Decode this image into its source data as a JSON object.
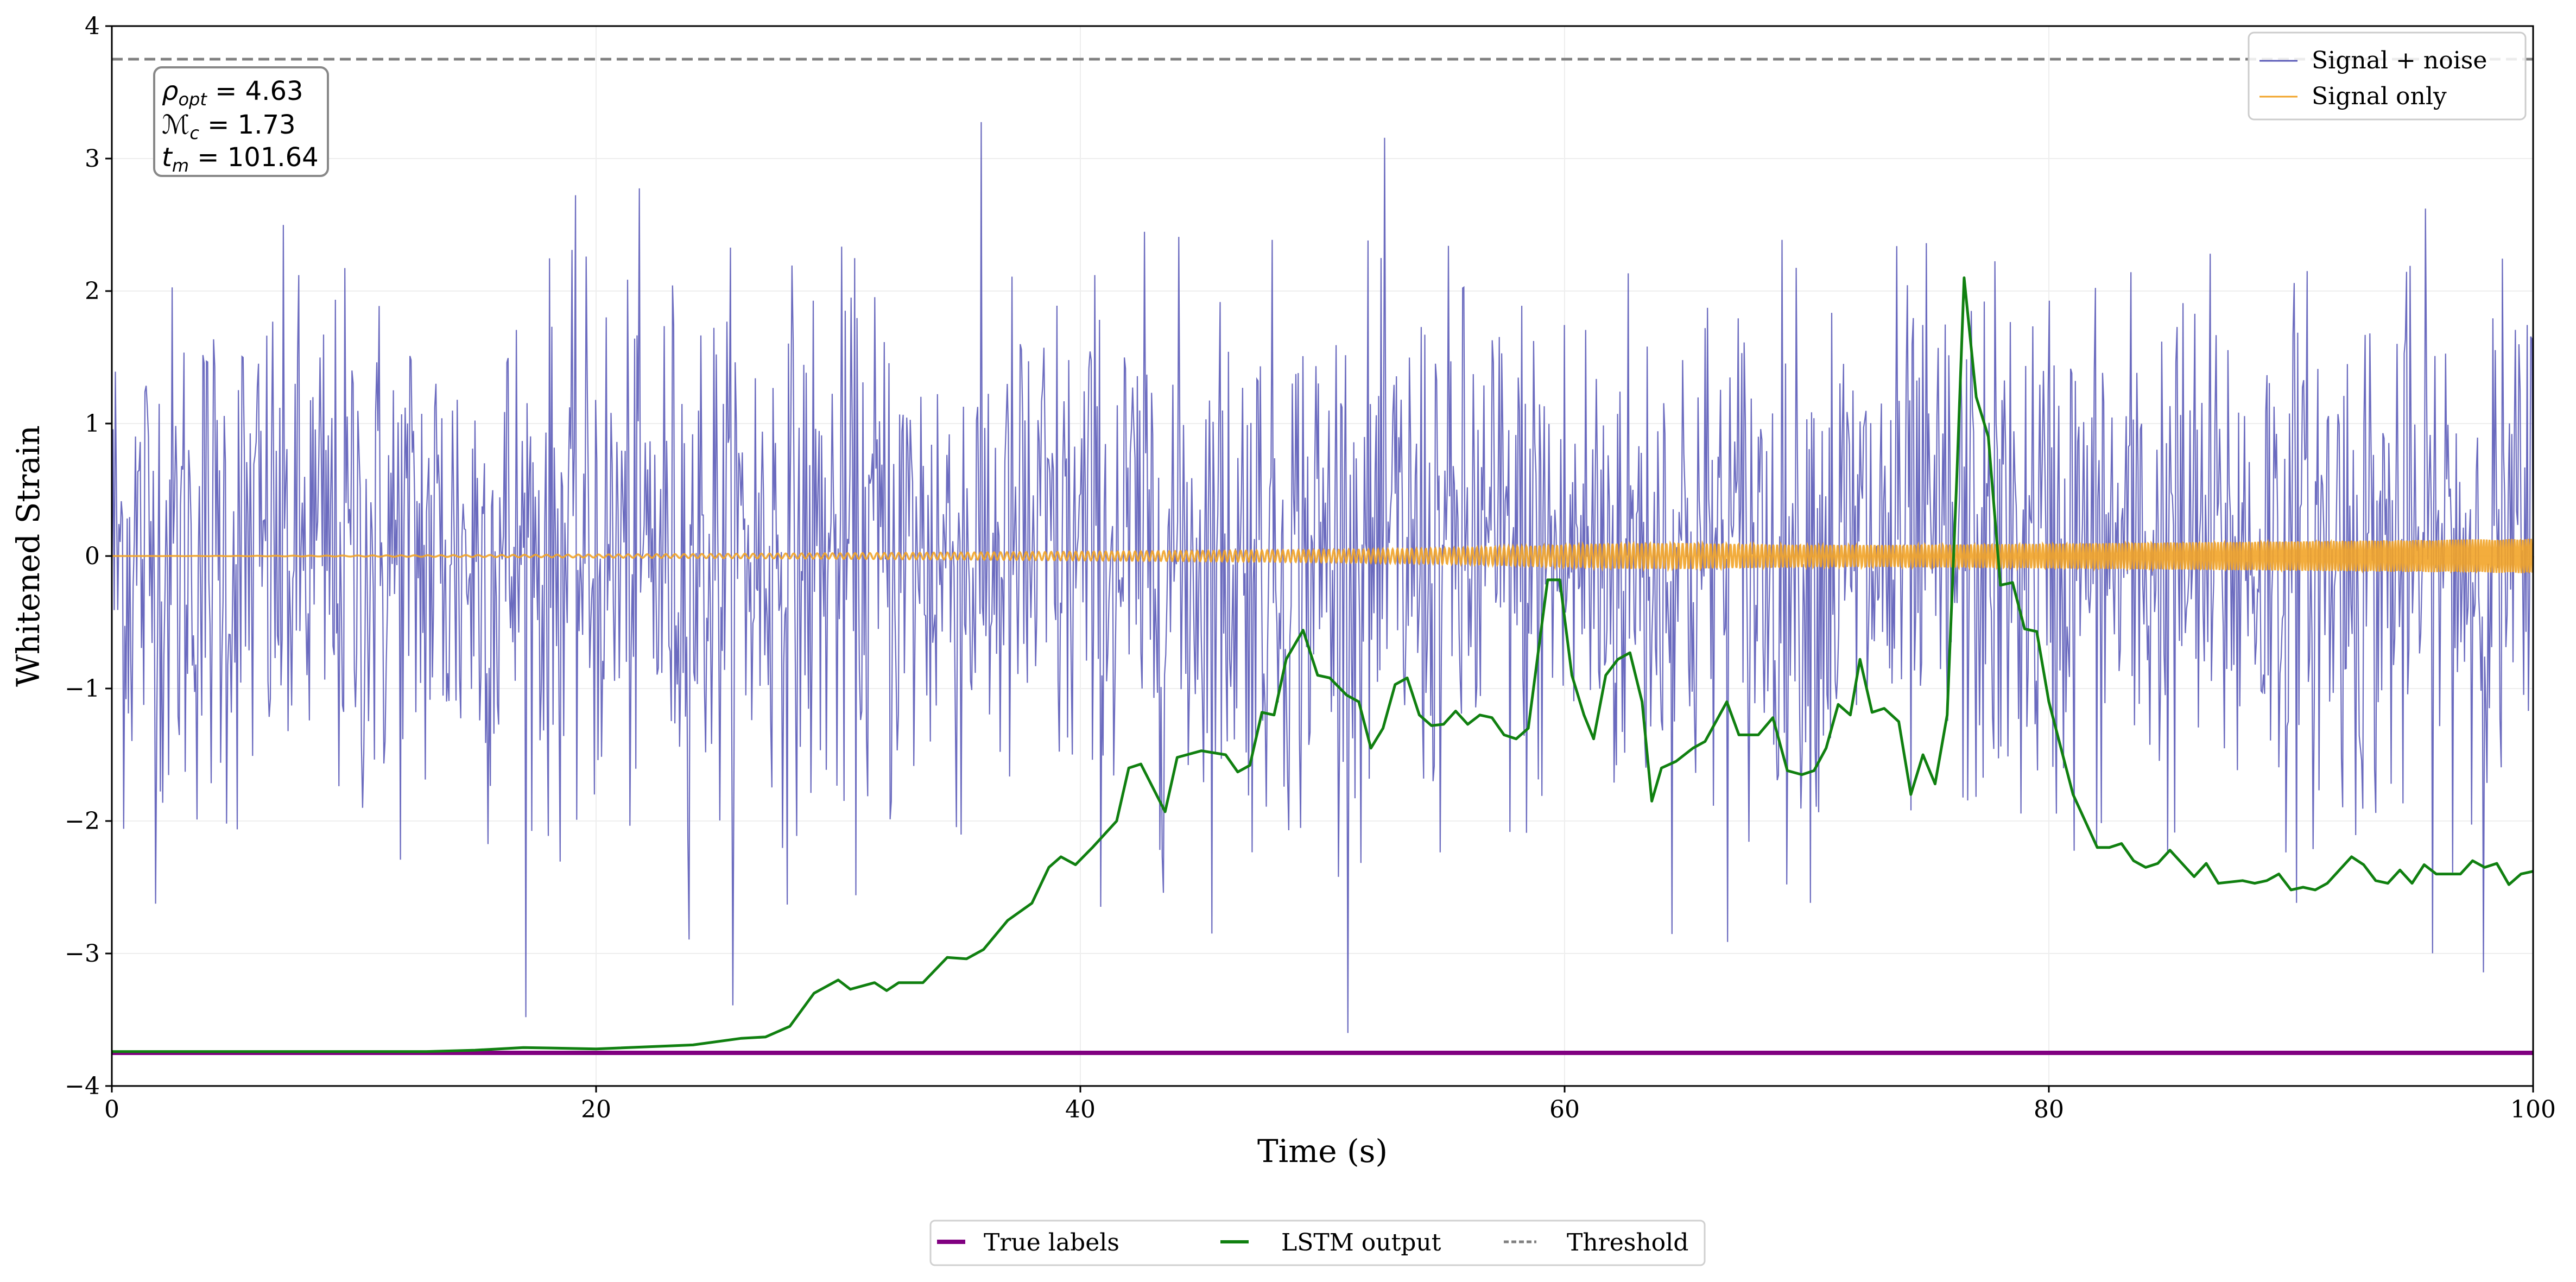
{
  "chart_data": {
    "type": "line",
    "xlabel": "Time (s)",
    "ylabel": "Whitened Strain",
    "xlim": [
      0,
      100
    ],
    "ylim": [
      -4,
      4
    ],
    "xticks": [
      "0",
      "20",
      "40",
      "60",
      "80",
      "100"
    ],
    "yticks": [
      "−4",
      "−3",
      "−2",
      "−1",
      "0",
      "1",
      "2",
      "3",
      "4"
    ],
    "grid": true,
    "annotation": {
      "rho": "ρ",
      "rho_sub": "opt",
      "rho_val": " = 4.63",
      "mc": "ℳ",
      "mc_sub": "c",
      "mc_val": " = 1.73",
      "tm": "t",
      "tm_sub": "m",
      "tm_val": " = 101.64"
    },
    "legend_top": {
      "placement": "top-right",
      "entries": [
        "Signal + noise",
        "Signal only"
      ]
    },
    "legend_bottom": {
      "placement": "bottom-center",
      "entries": [
        "True labels",
        "LSTM output",
        "Threshold"
      ]
    },
    "colors": {
      "signal_noise": "#5b5bb8",
      "signal_only": "#f2a428",
      "true_labels": "#800080",
      "lstm": "#108010",
      "threshold": "#808080"
    },
    "series": [
      {
        "name": "Signal + noise",
        "noise_std": 1.0,
        "n_samples": 2048
      },
      {
        "name": "Signal only",
        "amplitude_start": 0.0,
        "amplitude_end": 0.13
      },
      {
        "name": "True labels",
        "x": [
          0,
          100
        ],
        "y": [
          -3.75,
          -3.75
        ]
      },
      {
        "name": "Threshold",
        "x": [
          0,
          100
        ],
        "y": [
          3.75,
          3.75
        ]
      },
      {
        "name": "LSTM output",
        "x": [
          0,
          13,
          15,
          17,
          20,
          24,
          26,
          27,
          28,
          29,
          30,
          30.5,
          31.5,
          32,
          32.5,
          33.5,
          34.5,
          35.3,
          36,
          37,
          38,
          38.7,
          39.2,
          39.8,
          40.5,
          41.5,
          42,
          42.5,
          43.5,
          44,
          45,
          46,
          46.5,
          47,
          47.5,
          48,
          48.5,
          49.2,
          49.8,
          50.3,
          51,
          51.5,
          52,
          52.5,
          53,
          53.5,
          54,
          54.5,
          55,
          55.5,
          56,
          56.5,
          57,
          57.5,
          58,
          58.5,
          59,
          59.3,
          59.8,
          60.3,
          60.8,
          61.2,
          61.7,
          62.2,
          62.7,
          63.2,
          63.6,
          64,
          64.6,
          65.3,
          65.8,
          66.7,
          67.2,
          68,
          68.6,
          69.2,
          69.8,
          70.3,
          70.8,
          71.3,
          71.8,
          72.2,
          72.7,
          73.2,
          73.8,
          74.3,
          74.8,
          75.3,
          75.8,
          76.2,
          76.5,
          77,
          77.5,
          78,
          78.5,
          79,
          79.5,
          80,
          81,
          82,
          82.5,
          83,
          83.5,
          84,
          84.5,
          85,
          86,
          86.5,
          87,
          88,
          88.5,
          89,
          89.5,
          90,
          90.5,
          91,
          91.5,
          92,
          92.5,
          93,
          93.5,
          94,
          94.5,
          95,
          95.5,
          96,
          97,
          97.5,
          98,
          98.5,
          99,
          99.5,
          100
        ],
        "y": [
          -3.74,
          -3.74,
          -3.73,
          -3.71,
          -3.72,
          -3.69,
          -3.64,
          -3.63,
          -3.55,
          -3.3,
          -3.2,
          -3.27,
          -3.22,
          -3.28,
          -3.22,
          -3.22,
          -3.03,
          -3.04,
          -2.97,
          -2.75,
          -2.62,
          -2.35,
          -2.27,
          -2.33,
          -2.2,
          -2.0,
          -1.6,
          -1.57,
          -1.93,
          -1.52,
          -1.47,
          -1.5,
          -1.63,
          -1.58,
          -1.18,
          -1.2,
          -0.78,
          -0.56,
          -0.9,
          -0.92,
          -1.05,
          -1.1,
          -1.45,
          -1.3,
          -0.97,
          -0.92,
          -1.2,
          -1.28,
          -1.27,
          -1.17,
          -1.27,
          -1.2,
          -1.22,
          -1.35,
          -1.38,
          -1.3,
          -0.6,
          -0.18,
          -0.18,
          -0.9,
          -1.2,
          -1.38,
          -0.9,
          -0.78,
          -0.73,
          -1.1,
          -1.85,
          -1.6,
          -1.55,
          -1.45,
          -1.4,
          -1.1,
          -1.35,
          -1.35,
          -1.22,
          -1.62,
          -1.65,
          -1.62,
          -1.45,
          -1.12,
          -1.2,
          -0.78,
          -1.18,
          -1.15,
          -1.25,
          -1.8,
          -1.5,
          -1.72,
          -1.2,
          0.6,
          2.1,
          1.2,
          0.9,
          -0.22,
          -0.2,
          -0.55,
          -0.57,
          -1.1,
          -1.8,
          -2.2,
          -2.2,
          -2.17,
          -2.3,
          -2.35,
          -2.32,
          -2.22,
          -2.42,
          -2.32,
          -2.47,
          -2.45,
          -2.47,
          -2.45,
          -2.4,
          -2.52,
          -2.5,
          -2.52,
          -2.47,
          -2.37,
          -2.27,
          -2.33,
          -2.45,
          -2.47,
          -2.37,
          -2.47,
          -2.33,
          -2.4,
          -2.4,
          -2.3,
          -2.35,
          -2.32,
          -2.48,
          -2.4,
          -2.38
        ]
      }
    ]
  }
}
